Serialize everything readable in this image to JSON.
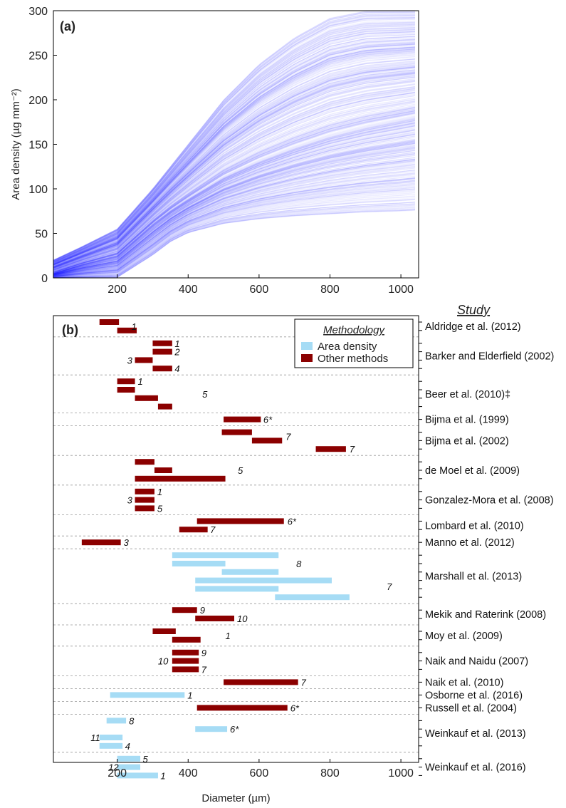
{
  "chart_data": [
    {
      "type": "line",
      "panel_label": "(a)",
      "ylabel": "Area density (µg mm⁻²)",
      "xlim": [
        20,
        1050
      ],
      "ylim": [
        0,
        300
      ],
      "x_ticks": [
        "200",
        "400",
        "600",
        "800",
        "1000"
      ],
      "y_ticks": [
        "0",
        "50",
        "100",
        "150",
        "200",
        "250",
        "300"
      ],
      "grid": false,
      "series_color": "#2121ff",
      "series_count_approx": 600,
      "envelope": {
        "diameter": [
          20,
          100,
          200,
          300,
          350,
          400,
          500,
          600,
          700,
          800,
          900,
          1000,
          1050
        ],
        "min": [
          0,
          0,
          0,
          25,
          40,
          50,
          60,
          65,
          68,
          70,
          72,
          73,
          74
        ],
        "median": [
          5,
          15,
          25,
          60,
          75,
          88,
          112,
          130,
          145,
          158,
          168,
          176,
          180
        ],
        "max": [
          20,
          35,
          55,
          100,
          125,
          150,
          200,
          240,
          270,
          292,
          300,
          300,
          300
        ]
      }
    },
    {
      "type": "bar",
      "orientation": "horizontal-range",
      "panel_label": "(b)",
      "xlabel": "Diameter (µm)",
      "xlim": [
        20,
        1050
      ],
      "x_ticks": [
        "200",
        "400",
        "600",
        "800",
        "1000"
      ],
      "legend": {
        "title": "Methodology",
        "position": "top-right",
        "entries": [
          {
            "name": "Area density",
            "color": "#a6dcf5"
          },
          {
            "name": "Other methods",
            "color": "#8b0000"
          }
        ]
      },
      "right_axis_title": "Study",
      "studies": [
        {
          "name": "Aldridge et al. (2012)",
          "rows": 2,
          "ranges": [
            {
              "start": 150,
              "end": 205,
              "method": "other"
            },
            {
              "start": 200,
              "end": 255,
              "method": "other"
            }
          ],
          "refs": [
            {
              "label": "1",
              "x": 240,
              "row": 0.5
            }
          ]
        },
        {
          "name": "Barker and Elderfield (2002)",
          "rows": 4,
          "ranges": [
            {
              "start": 300,
              "end": 355,
              "method": "other"
            },
            {
              "start": 300,
              "end": 355,
              "method": "other"
            },
            {
              "start": 250,
              "end": 300,
              "method": "other"
            },
            {
              "start": 300,
              "end": 355,
              "method": "other"
            }
          ],
          "refs": [
            {
              "label": "1",
              "x": 362,
              "row": 0
            },
            {
              "label": "2",
              "x": 362,
              "row": 1
            },
            {
              "label": "3",
              "x": 228,
              "row": 2
            },
            {
              "label": "4",
              "x": 362,
              "row": 3
            }
          ]
        },
        {
          "name": "Beer et al. (2010)‡",
          "rows": 4,
          "ranges": [
            {
              "start": 200,
              "end": 250,
              "method": "other"
            },
            {
              "start": 200,
              "end": 250,
              "method": "other"
            },
            {
              "start": 250,
              "end": 315,
              "method": "other"
            },
            {
              "start": 315,
              "end": 355,
              "method": "other"
            }
          ],
          "refs": [
            {
              "label": "1",
              "x": 258,
              "row": 0
            },
            {
              "label": "5",
              "x": 440,
              "row": 1.5
            }
          ]
        },
        {
          "name": "Bijma et al. (1999)",
          "rows": 1,
          "ranges": [
            {
              "start": 500,
              "end": 605,
              "method": "other"
            }
          ],
          "refs": [
            {
              "label": "6*",
              "x": 612,
              "row": 0
            }
          ]
        },
        {
          "name": "Bijma et al. (2002)",
          "rows": 3,
          "ranges": [
            {
              "start": 495,
              "end": 580,
              "method": "other"
            },
            {
              "start": 580,
              "end": 665,
              "method": "other"
            },
            {
              "start": 760,
              "end": 845,
              "method": "other"
            }
          ],
          "refs": [
            {
              "label": "7",
              "x": 675,
              "row": 0.5
            },
            {
              "label": "7",
              "x": 855,
              "row": 2
            }
          ]
        },
        {
          "name": "de Moel et al. (2009)",
          "rows": 3,
          "ranges": [
            {
              "start": 250,
              "end": 305,
              "method": "other"
            },
            {
              "start": 305,
              "end": 355,
              "method": "other"
            },
            {
              "start": 250,
              "end": 505,
              "method": "other"
            }
          ],
          "refs": [
            {
              "label": "5",
              "x": 540,
              "row": 1
            }
          ]
        },
        {
          "name": "Gonzalez-Mora et al. (2008)",
          "rows": 3,
          "ranges": [
            {
              "start": 250,
              "end": 305,
              "method": "other"
            },
            {
              "start": 250,
              "end": 305,
              "method": "other"
            },
            {
              "start": 250,
              "end": 305,
              "method": "other"
            }
          ],
          "refs": [
            {
              "label": "1",
              "x": 313,
              "row": 0
            },
            {
              "label": "3",
              "x": 228,
              "row": 1
            },
            {
              "label": "5",
              "x": 313,
              "row": 2
            }
          ]
        },
        {
          "name": "Lombard et al. (2010)",
          "rows": 2,
          "ranges": [
            {
              "start": 425,
              "end": 670,
              "method": "other"
            },
            {
              "start": 375,
              "end": 455,
              "method": "other"
            }
          ],
          "refs": [
            {
              "label": "6*",
              "x": 680,
              "row": 0
            },
            {
              "label": "7",
              "x": 462,
              "row": 1
            }
          ]
        },
        {
          "name": "Manno et al. (2012)",
          "rows": 1,
          "ranges": [
            {
              "start": 100,
              "end": 210,
              "method": "other"
            }
          ],
          "refs": [
            {
              "label": "3",
              "x": 218,
              "row": 0
            }
          ]
        },
        {
          "name": "Marshall et al. (2013)",
          "rows": 6,
          "ranges": [
            {
              "start": 355,
              "end": 655,
              "method": "area"
            },
            {
              "start": 355,
              "end": 505,
              "method": "area"
            },
            {
              "start": 495,
              "end": 655,
              "method": "area"
            },
            {
              "start": 420,
              "end": 805,
              "method": "area"
            },
            {
              "start": 420,
              "end": 655,
              "method": "area"
            },
            {
              "start": 645,
              "end": 855,
              "method": "area"
            }
          ],
          "refs": [
            {
              "label": "8",
              "x": 705,
              "row": 1
            },
            {
              "label": "7",
              "x": 960,
              "row": 3.7
            }
          ]
        },
        {
          "name": "Mekik and Raterink (2008)",
          "rows": 2,
          "ranges": [
            {
              "start": 355,
              "end": 425,
              "method": "other"
            },
            {
              "start": 420,
              "end": 530,
              "method": "other"
            }
          ],
          "refs": [
            {
              "label": "9",
              "x": 433,
              "row": 0
            },
            {
              "label": "10",
              "x": 538,
              "row": 1
            }
          ]
        },
        {
          "name": "Moy et al. (2009)",
          "rows": 2,
          "ranges": [
            {
              "start": 300,
              "end": 365,
              "method": "other"
            },
            {
              "start": 355,
              "end": 435,
              "method": "other"
            }
          ],
          "refs": [
            {
              "label": "1",
              "x": 505,
              "row": 0.5
            }
          ]
        },
        {
          "name": "Naik and Naidu (2007)",
          "rows": 3,
          "ranges": [
            {
              "start": 355,
              "end": 430,
              "method": "other"
            },
            {
              "start": 355,
              "end": 430,
              "method": "other"
            },
            {
              "start": 355,
              "end": 430,
              "method": "other"
            }
          ],
          "refs": [
            {
              "label": "9",
              "x": 437,
              "row": 0
            },
            {
              "label": "10",
              "x": 315,
              "row": 1
            },
            {
              "label": "7",
              "x": 437,
              "row": 2
            }
          ]
        },
        {
          "name": "Naik et al. (2010)",
          "rows": 1,
          "ranges": [
            {
              "start": 500,
              "end": 710,
              "method": "other"
            }
          ],
          "refs": [
            {
              "label": "7",
              "x": 718,
              "row": 0
            }
          ]
        },
        {
          "name": "Osborne et al. (2016)",
          "rows": 1,
          "ranges": [
            {
              "start": 180,
              "end": 390,
              "method": "area"
            }
          ],
          "refs": [
            {
              "label": "1",
              "x": 398,
              "row": 0
            }
          ]
        },
        {
          "name": "Russell et al. (2004)",
          "rows": 1,
          "ranges": [
            {
              "start": 425,
              "end": 680,
              "method": "other"
            }
          ],
          "refs": [
            {
              "label": "6*",
              "x": 688,
              "row": 0
            }
          ]
        },
        {
          "name": "Weinkauf et al. (2013)",
          "rows": 4,
          "ranges": [
            {
              "start": 170,
              "end": 225,
              "method": "area"
            },
            {
              "start": 420,
              "end": 510,
              "method": "area"
            },
            {
              "start": 150,
              "end": 215,
              "method": "area"
            },
            {
              "start": 150,
              "end": 215,
              "method": "area"
            }
          ],
          "refs": [
            {
              "label": "8",
              "x": 233,
              "row": 0
            },
            {
              "label": "6*",
              "x": 518,
              "row": 1
            },
            {
              "label": "11",
              "x": 125,
              "row": 2
            },
            {
              "label": "4",
              "x": 222,
              "row": 3
            }
          ]
        },
        {
          "name": "Weinkauf et al. (2016)",
          "rows": 3,
          "ranges": [
            {
              "start": 200,
              "end": 265,
              "method": "area"
            },
            {
              "start": 200,
              "end": 265,
              "method": "area"
            },
            {
              "start": 200,
              "end": 315,
              "method": "area"
            }
          ],
          "refs": [
            {
              "label": "5",
              "x": 272,
              "row": 0
            },
            {
              "label": "12",
              "x": 175,
              "row": 1
            },
            {
              "label": "1",
              "x": 322,
              "row": 2
            }
          ]
        }
      ]
    }
  ]
}
